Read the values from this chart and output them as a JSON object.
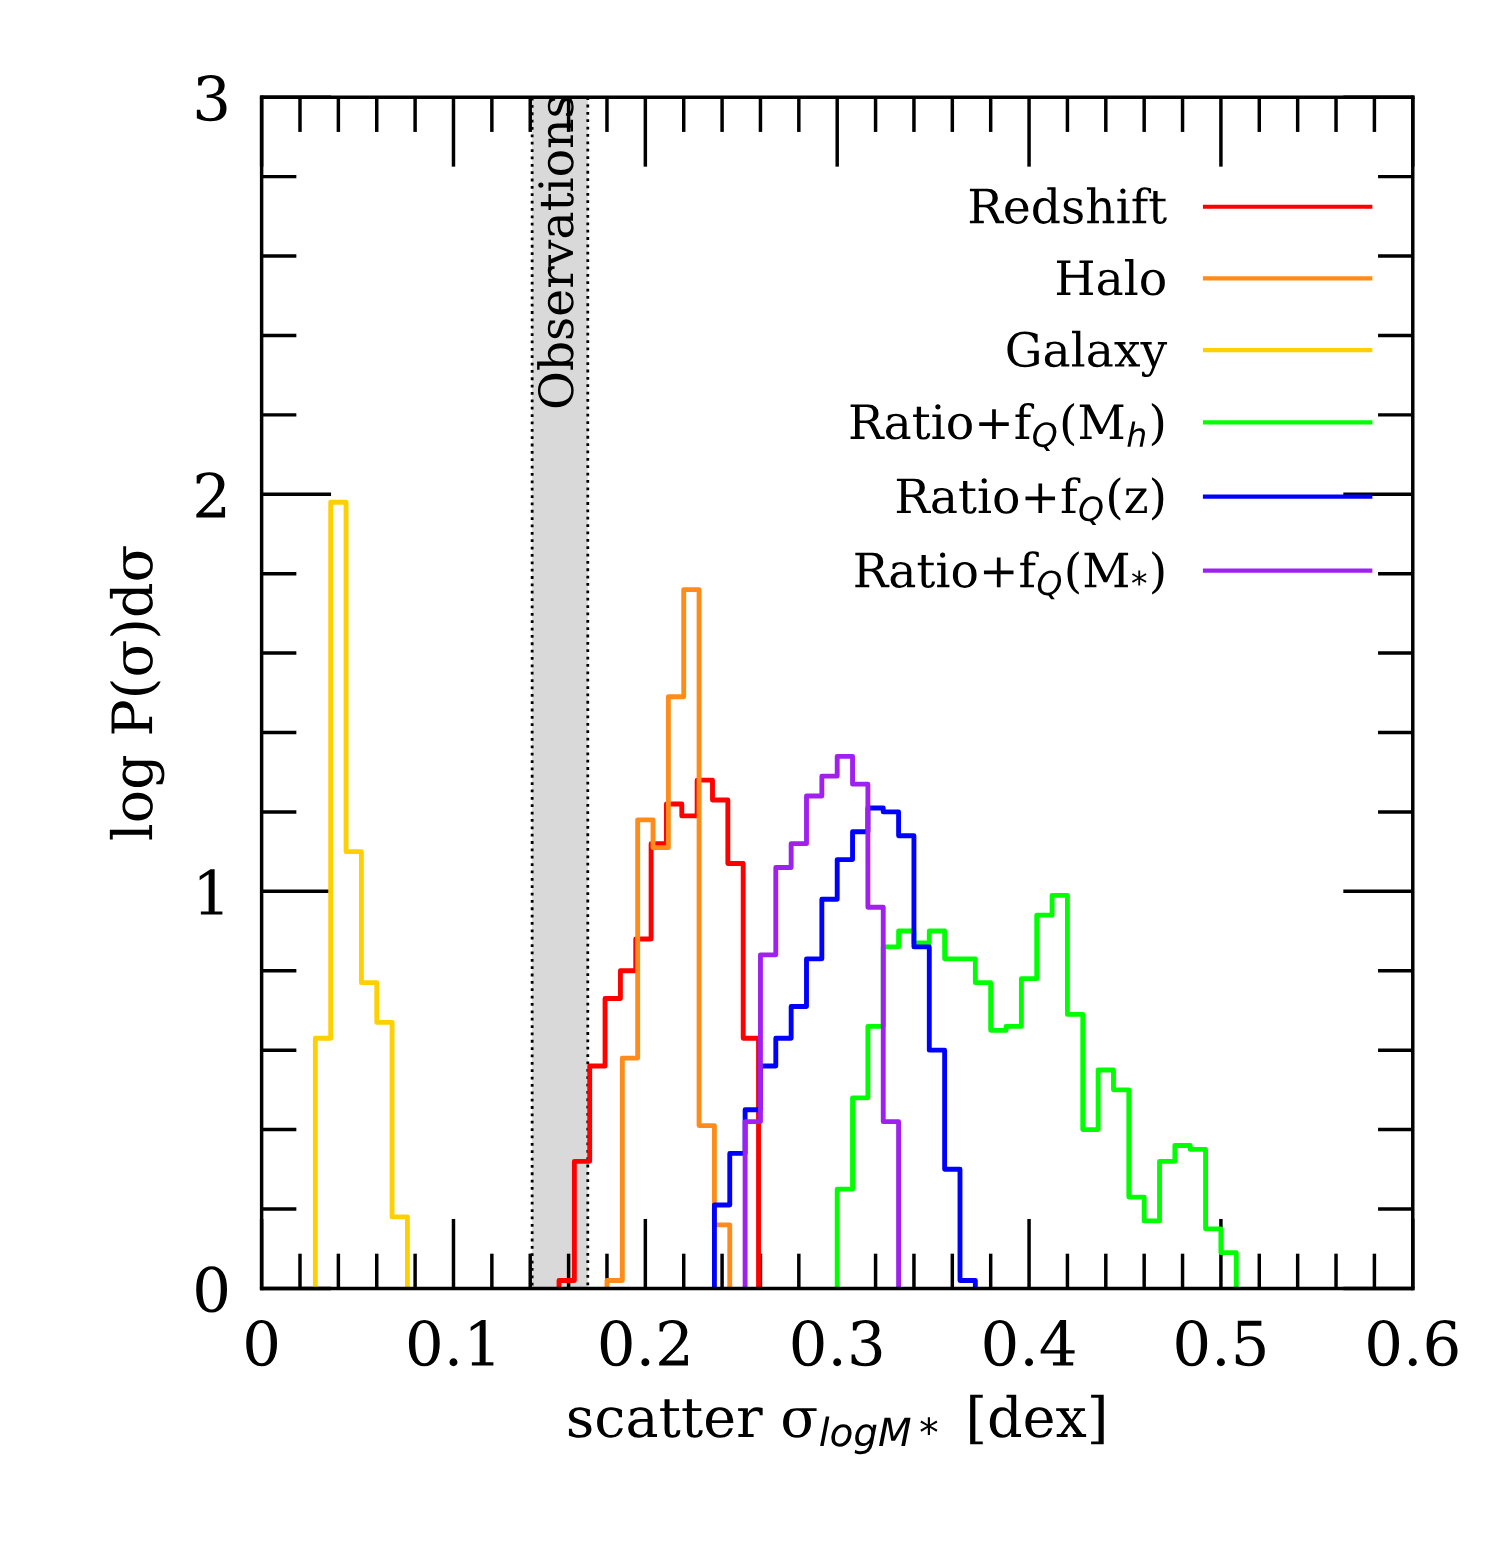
{
  "chart_data": {
    "type": "step",
    "xlabel": "scatter σ$_{logM*}$ [dex]",
    "ylabel": "log P(σ)dσ",
    "xlim": [
      0,
      0.6
    ],
    "ylim": [
      0,
      3
    ],
    "xticks": [
      0,
      0.1,
      0.2,
      0.3,
      0.4,
      0.5,
      0.6
    ],
    "yticks": [
      0,
      1,
      2,
      3
    ],
    "grid": false,
    "legend": "top right",
    "bands": [
      {
        "axis": "x",
        "from": 0.141,
        "to": 0.17,
        "label": "Observations",
        "color": "#d9d9d9"
      }
    ],
    "series": [
      {
        "name": "Redshift",
        "color": "#ff0000",
        "x": [
          0.155,
          0.155,
          0.163,
          0.171,
          0.179,
          0.187,
          0.195,
          0.203,
          0.211,
          0.219,
          0.227,
          0.235,
          0.243,
          0.251,
          0.259
        ],
        "values": [
          0,
          0.02,
          0.32,
          0.56,
          0.73,
          0.8,
          0.88,
          1.12,
          1.22,
          1.19,
          1.28,
          1.23,
          1.07,
          0.63,
          0
        ]
      },
      {
        "name": "Halo",
        "color": "#ff8c1a",
        "x": [
          0.18,
          0.18,
          0.188,
          0.196,
          0.204,
          0.212,
          0.22,
          0.228,
          0.236,
          0.244
        ],
        "values": [
          0,
          0.02,
          0.58,
          1.18,
          1.11,
          1.49,
          1.76,
          0.41,
          0.16,
          0
        ]
      },
      {
        "name": "Galaxy",
        "color": "#ffd000",
        "x": [
          0.028,
          0.028,
          0.036,
          0.044,
          0.052,
          0.06,
          0.068,
          0.076
        ],
        "values": [
          0,
          0.63,
          1.98,
          1.1,
          0.77,
          0.67,
          0.18,
          0
        ]
      },
      {
        "name": "Ratio+f$_{Q}$(M$_{h}$)",
        "color": "#00ff00",
        "x": [
          0.3,
          0.3,
          0.308,
          0.316,
          0.324,
          0.332,
          0.34,
          0.348,
          0.356,
          0.364,
          0.372,
          0.38,
          0.388,
          0.396,
          0.404,
          0.412,
          0.42,
          0.428,
          0.436,
          0.444,
          0.452,
          0.46,
          0.468,
          0.476,
          0.484,
          0.492,
          0.5,
          0.508
        ],
        "values": [
          0,
          0.25,
          0.48,
          0.66,
          0.86,
          0.9,
          0.87,
          0.9,
          0.83,
          0.83,
          0.77,
          0.65,
          0.66,
          0.78,
          0.94,
          0.99,
          0.69,
          0.4,
          0.55,
          0.5,
          0.23,
          0.17,
          0.32,
          0.36,
          0.35,
          0.15,
          0.09,
          0
        ]
      },
      {
        "name": "Ratio+f$_{Q}$(z)",
        "color": "#0000ff",
        "x": [
          0.236,
          0.236,
          0.244,
          0.252,
          0.26,
          0.268,
          0.276,
          0.284,
          0.292,
          0.3,
          0.308,
          0.316,
          0.324,
          0.332,
          0.34,
          0.348,
          0.356,
          0.364,
          0.372
        ],
        "values": [
          0,
          0.21,
          0.34,
          0.45,
          0.56,
          0.63,
          0.71,
          0.83,
          0.98,
          1.08,
          1.15,
          1.21,
          1.2,
          1.14,
          0.86,
          0.6,
          0.3,
          0.02,
          0
        ]
      },
      {
        "name": "Ratio+f$_{Q}$(M$_{*}$)",
        "color": "#a020f0",
        "x": [
          0.252,
          0.252,
          0.26,
          0.268,
          0.276,
          0.284,
          0.292,
          0.3,
          0.308,
          0.316,
          0.324,
          0.332
        ],
        "values": [
          0,
          0.42,
          0.84,
          1.06,
          1.12,
          1.24,
          1.29,
          1.34,
          1.27,
          0.96,
          0.42,
          0
        ]
      }
    ]
  }
}
